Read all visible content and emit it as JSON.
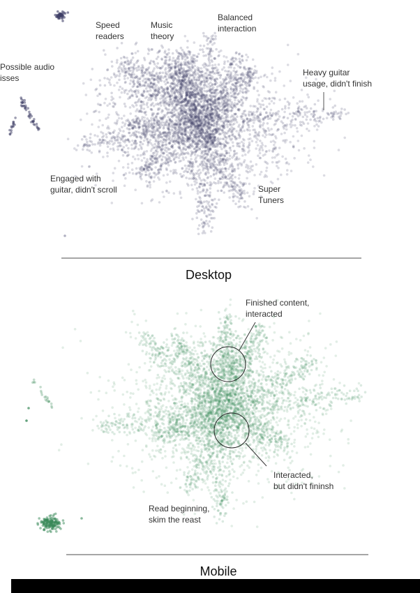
{
  "desktop": {
    "title": "Desktop",
    "annotations": [
      {
        "lines": [
          "Speed",
          "readers"
        ]
      },
      {
        "lines": [
          "Music",
          "theory"
        ]
      },
      {
        "lines": [
          "Balanced",
          "interaction"
        ]
      },
      {
        "lines": [
          "Possible audio",
          "isses"
        ]
      },
      {
        "lines": [
          "Heavy guitar",
          "usage, didn't finish"
        ]
      },
      {
        "lines": [
          "Engaged with",
          "guitar, didn't scroll"
        ]
      },
      {
        "lines": [
          "Super",
          "Tuners"
        ]
      }
    ]
  },
  "mobile": {
    "title": "Mobile",
    "annotations": [
      {
        "lines": [
          "Finished content,",
          "interacted"
        ]
      },
      {
        "lines": [
          "Interacted,",
          "but didn't fininsh"
        ]
      },
      {
        "lines": [
          "Read beginning,",
          "skim the reast"
        ]
      }
    ]
  }
}
